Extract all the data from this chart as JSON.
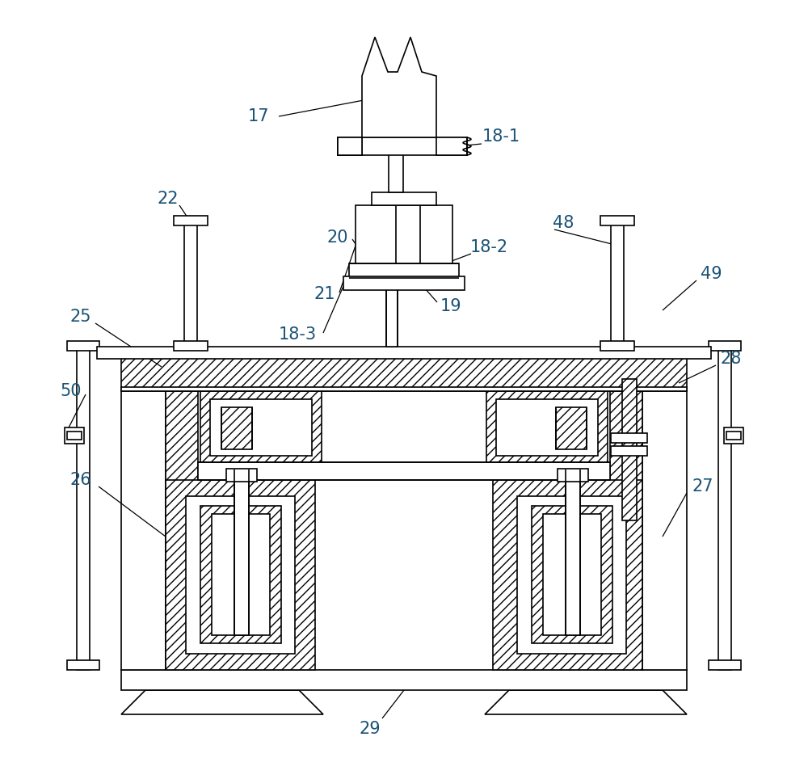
{
  "background_color": "#ffffff",
  "line_color": "#000000",
  "label_color": "#1a5276",
  "figsize": [
    10.0,
    9.64
  ],
  "dpi": 100,
  "lw": 1.2
}
